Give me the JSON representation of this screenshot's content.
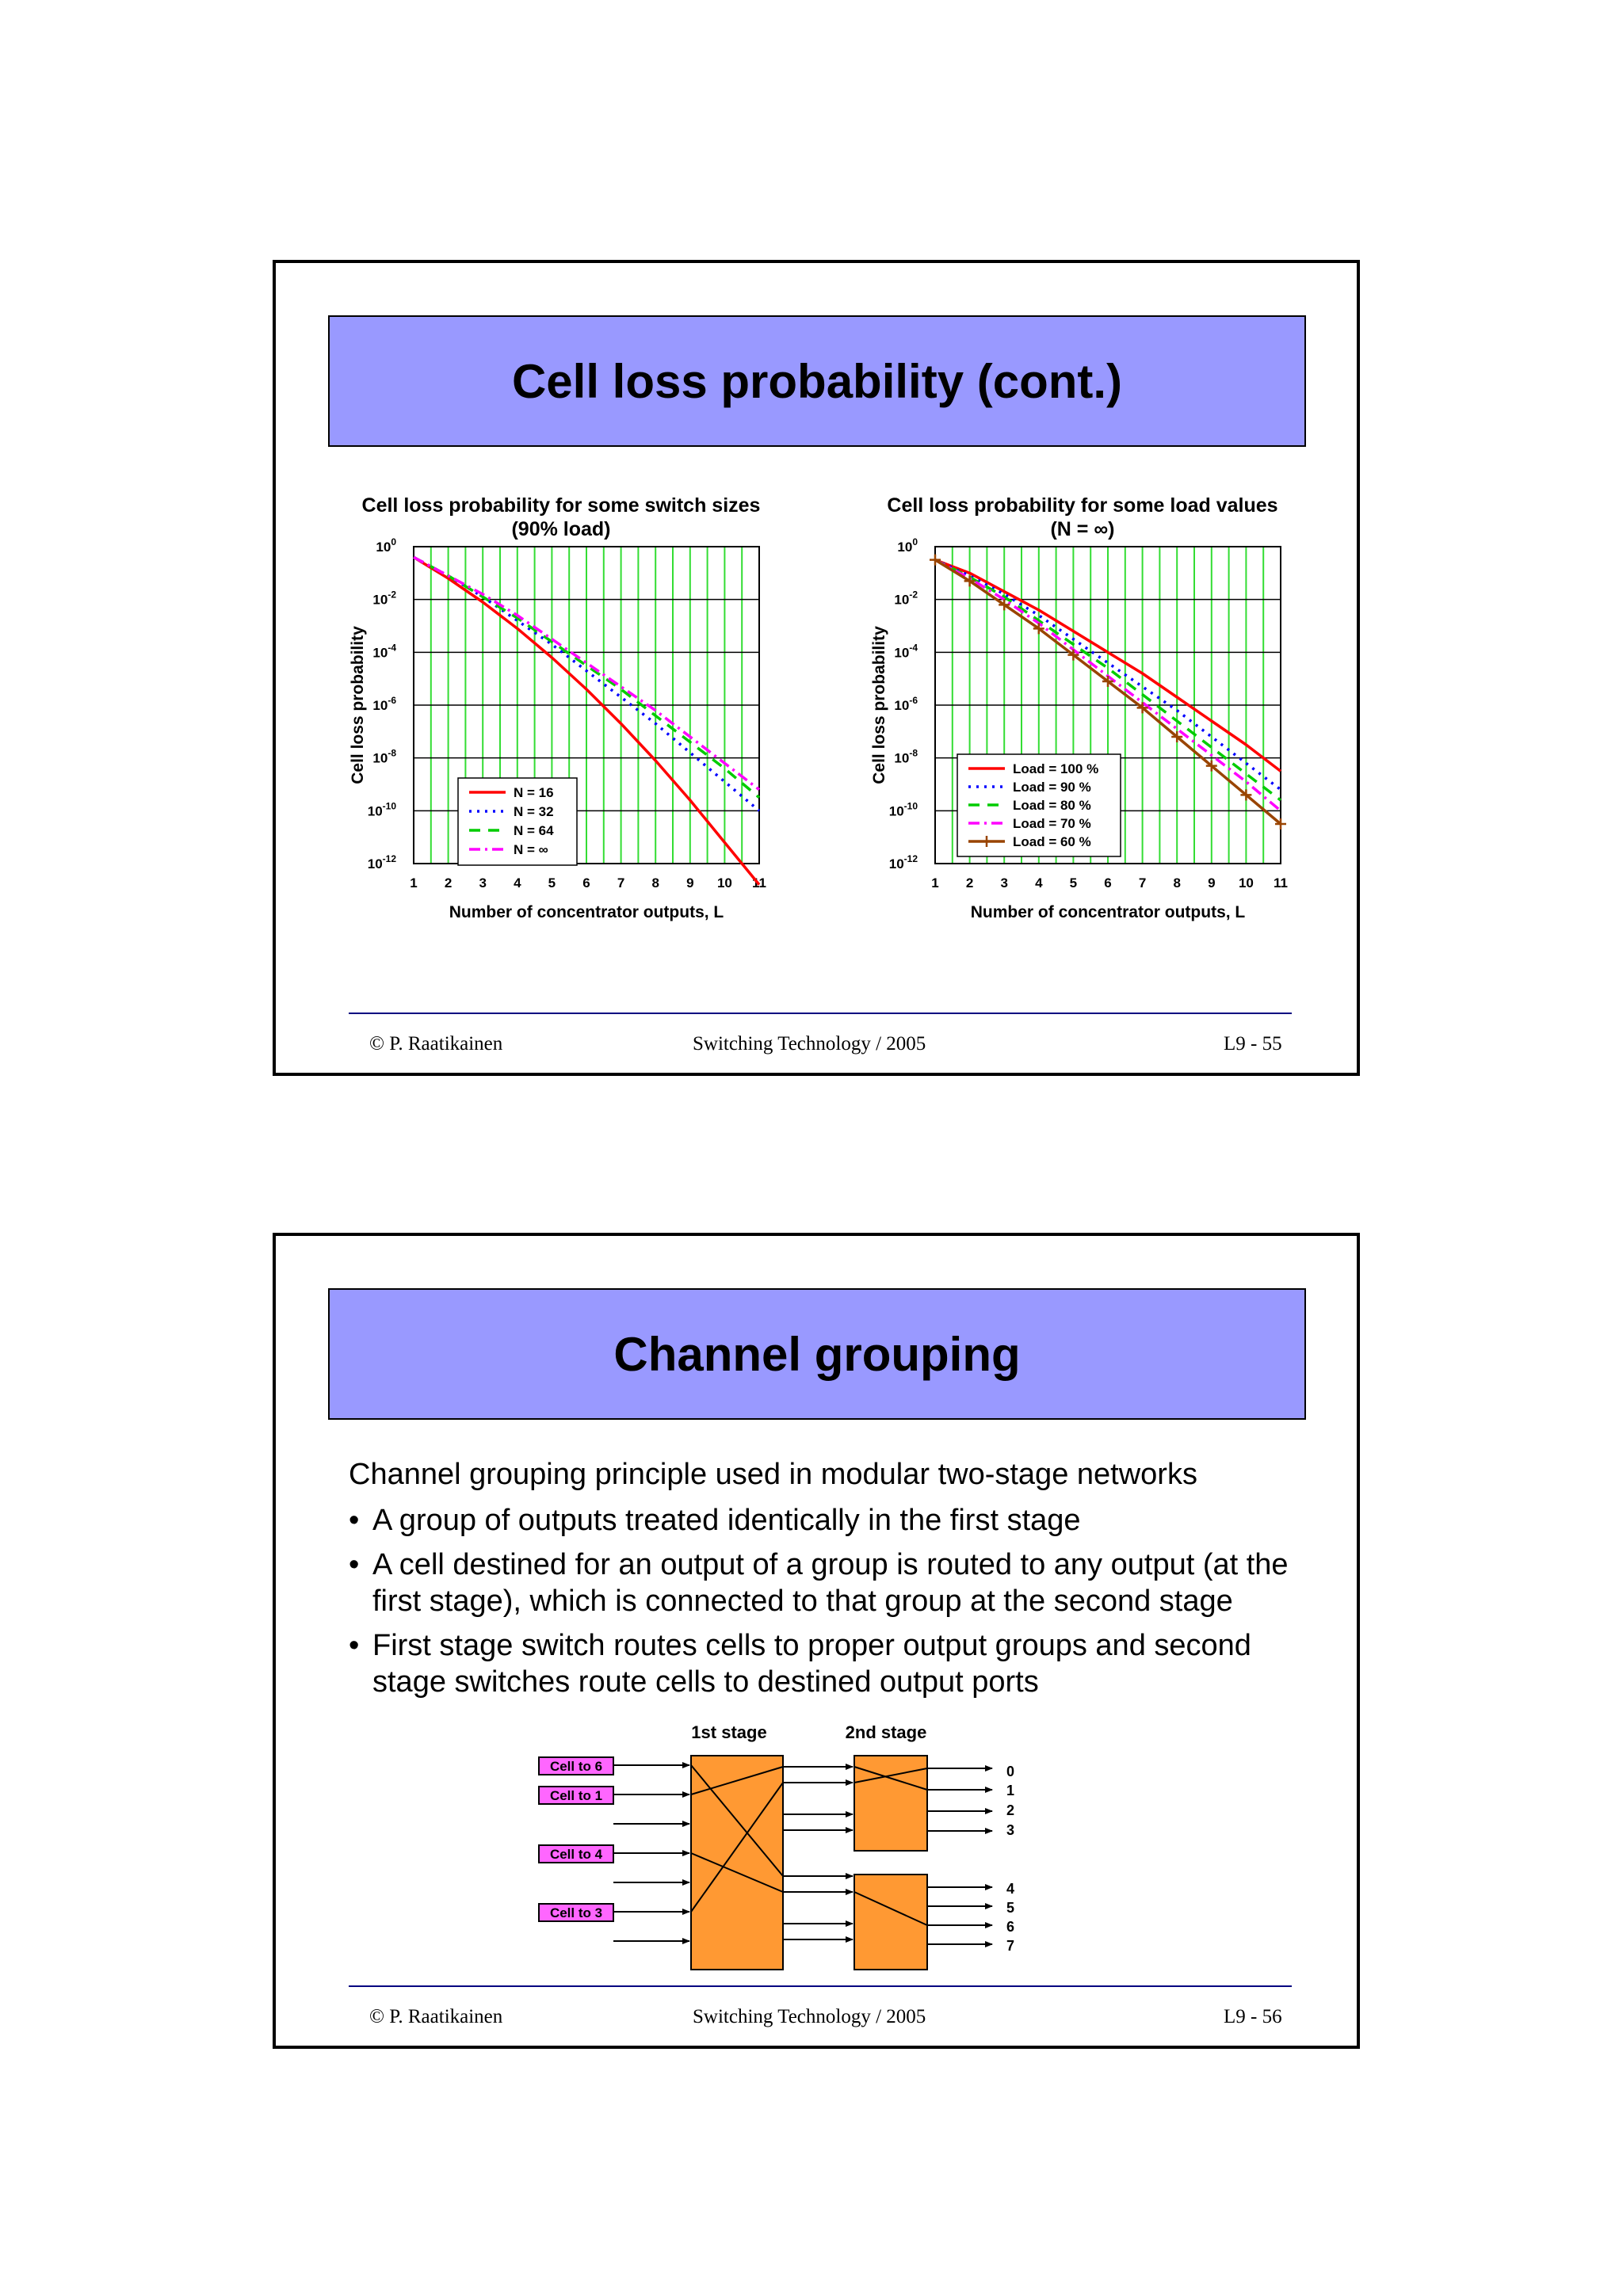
{
  "slide1": {
    "title": "Cell loss probability (cont.)",
    "footer": {
      "left": "© P. Raatikainen",
      "center": "Switching Technology  / 2005",
      "right": "L9 - 55"
    }
  },
  "slide2": {
    "title": "Channel grouping",
    "intro": "Channel grouping principle used in modular two-stage networks",
    "bullets": [
      "A group of outputs treated identically in the first stage",
      "A cell destined for an output of a group is routed to any output (at the first stage), which is connected to that group at the second stage",
      "First stage switch routes cells to proper output groups and second stage switches route cells to destined output ports"
    ],
    "diagram": {
      "stage1_label": "1st stage",
      "stage2_label": "2nd stage",
      "cells": [
        "Cell to 6",
        "Cell to 1",
        "Cell to 4",
        "Cell to 3"
      ],
      "outputs": [
        "0",
        "1",
        "2",
        "3",
        "4",
        "5",
        "6",
        "7"
      ],
      "colors": {
        "switch": "#ff9933",
        "cell": "#ff66ff"
      }
    },
    "footer": {
      "left": "© P. Raatikainen",
      "center": "Switching Technology  / 2005",
      "right": "L9 - 56"
    }
  },
  "chart_data": [
    {
      "type": "line",
      "title": "Cell loss probability for some switch sizes",
      "subtitle": "(90% load)",
      "xlabel": "Number of concentrator  outputs, L",
      "ylabel": "Cell loss  probability",
      "y_scale": "log",
      "xlim": [
        1,
        11
      ],
      "ylim": [
        1e-12,
        1
      ],
      "x_ticks": [
        "1",
        "2",
        "3",
        "4",
        "5",
        "6",
        "7",
        "8",
        "9",
        "10",
        "11"
      ],
      "y_ticks": [
        {
          "base": "10",
          "exp": "0"
        },
        {
          "base": "10",
          "exp": "-2"
        },
        {
          "base": "10",
          "exp": "-4"
        },
        {
          "base": "10",
          "exp": "-6"
        },
        {
          "base": "10",
          "exp": "-8"
        },
        {
          "base": "10",
          "exp": "-10"
        },
        {
          "base": "10",
          "exp": "-12"
        }
      ],
      "grid": true,
      "legend": "lower-center",
      "x": [
        1,
        2,
        3,
        4,
        5,
        6,
        7,
        8,
        9,
        10,
        11
      ],
      "series": [
        {
          "name": "N = 16",
          "color": "#ff0000",
          "dash": "solid",
          "log10_y": [
            -0.4,
            -1.2,
            -2.1,
            -3.1,
            -4.2,
            -5.4,
            -6.7,
            -8.1,
            -9.6,
            -11.2,
            -12.8
          ]
        },
        {
          "name": "N = 32",
          "color": "#0000ff",
          "dash": "dot",
          "log10_y": [
            -0.4,
            -1.1,
            -1.9,
            -2.8,
            -3.7,
            -4.7,
            -5.7,
            -6.7,
            -7.8,
            -8.9,
            -10.0
          ]
        },
        {
          "name": "N = 64",
          "color": "#00cc00",
          "dash": "dash",
          "log10_y": [
            -0.4,
            -1.1,
            -1.9,
            -2.7,
            -3.6,
            -4.5,
            -5.4,
            -6.4,
            -7.4,
            -8.4,
            -9.5
          ]
        },
        {
          "name": "N = ∞",
          "color": "#ff00ff",
          "dash": "dashdot",
          "log10_y": [
            -0.4,
            -1.1,
            -1.8,
            -2.6,
            -3.5,
            -4.4,
            -5.3,
            -6.2,
            -7.2,
            -8.2,
            -9.2
          ]
        }
      ]
    },
    {
      "type": "line",
      "title": "Cell loss probability for some load values",
      "subtitle": "(N = ∞)",
      "xlabel": "Number of concentrator  outputs, L",
      "ylabel": "Cell loss  probability",
      "y_scale": "log",
      "xlim": [
        1,
        11
      ],
      "ylim": [
        1e-12,
        1
      ],
      "x_ticks": [
        "1",
        "2",
        "3",
        "4",
        "5",
        "6",
        "7",
        "8",
        "9",
        "10",
        "11"
      ],
      "y_ticks": [
        {
          "base": "10",
          "exp": "0"
        },
        {
          "base": "10",
          "exp": "-2"
        },
        {
          "base": "10",
          "exp": "-4"
        },
        {
          "base": "10",
          "exp": "-6"
        },
        {
          "base": "10",
          "exp": "-8"
        },
        {
          "base": "10",
          "exp": "-10"
        },
        {
          "base": "10",
          "exp": "-12"
        }
      ],
      "grid": true,
      "legend": "center",
      "x": [
        1,
        2,
        3,
        4,
        5,
        6,
        7,
        8,
        9,
        10,
        11
      ],
      "series": [
        {
          "name": "Load = 100 %",
          "color": "#ff0000",
          "dash": "solid",
          "log10_y": [
            -0.5,
            -1.0,
            -1.7,
            -2.4,
            -3.2,
            -4.0,
            -4.8,
            -5.7,
            -6.6,
            -7.5,
            -8.5
          ]
        },
        {
          "name": "Load = 90 %",
          "color": "#0000ff",
          "dash": "dot",
          "log10_y": [
            -0.5,
            -1.1,
            -1.8,
            -2.6,
            -3.5,
            -4.4,
            -5.3,
            -6.2,
            -7.2,
            -8.2,
            -9.2
          ]
        },
        {
          "name": "Load = 80 %",
          "color": "#00cc00",
          "dash": "dash",
          "log10_y": [
            -0.5,
            -1.15,
            -1.9,
            -2.8,
            -3.7,
            -4.6,
            -5.6,
            -6.6,
            -7.6,
            -8.6,
            -9.6
          ]
        },
        {
          "name": "Load = 70 %",
          "color": "#ff00ff",
          "dash": "dashdot",
          "log10_y": [
            -0.5,
            -1.2,
            -2.0,
            -2.9,
            -3.9,
            -4.9,
            -5.9,
            -6.9,
            -7.9,
            -8.9,
            -10.0
          ]
        },
        {
          "name": "Load = 60 %",
          "color": "#994400",
          "dash": "solid-cross",
          "log10_y": [
            -0.5,
            -1.3,
            -2.2,
            -3.1,
            -4.1,
            -5.1,
            -6.1,
            -7.2,
            -8.3,
            -9.4,
            -10.5
          ]
        }
      ]
    }
  ]
}
